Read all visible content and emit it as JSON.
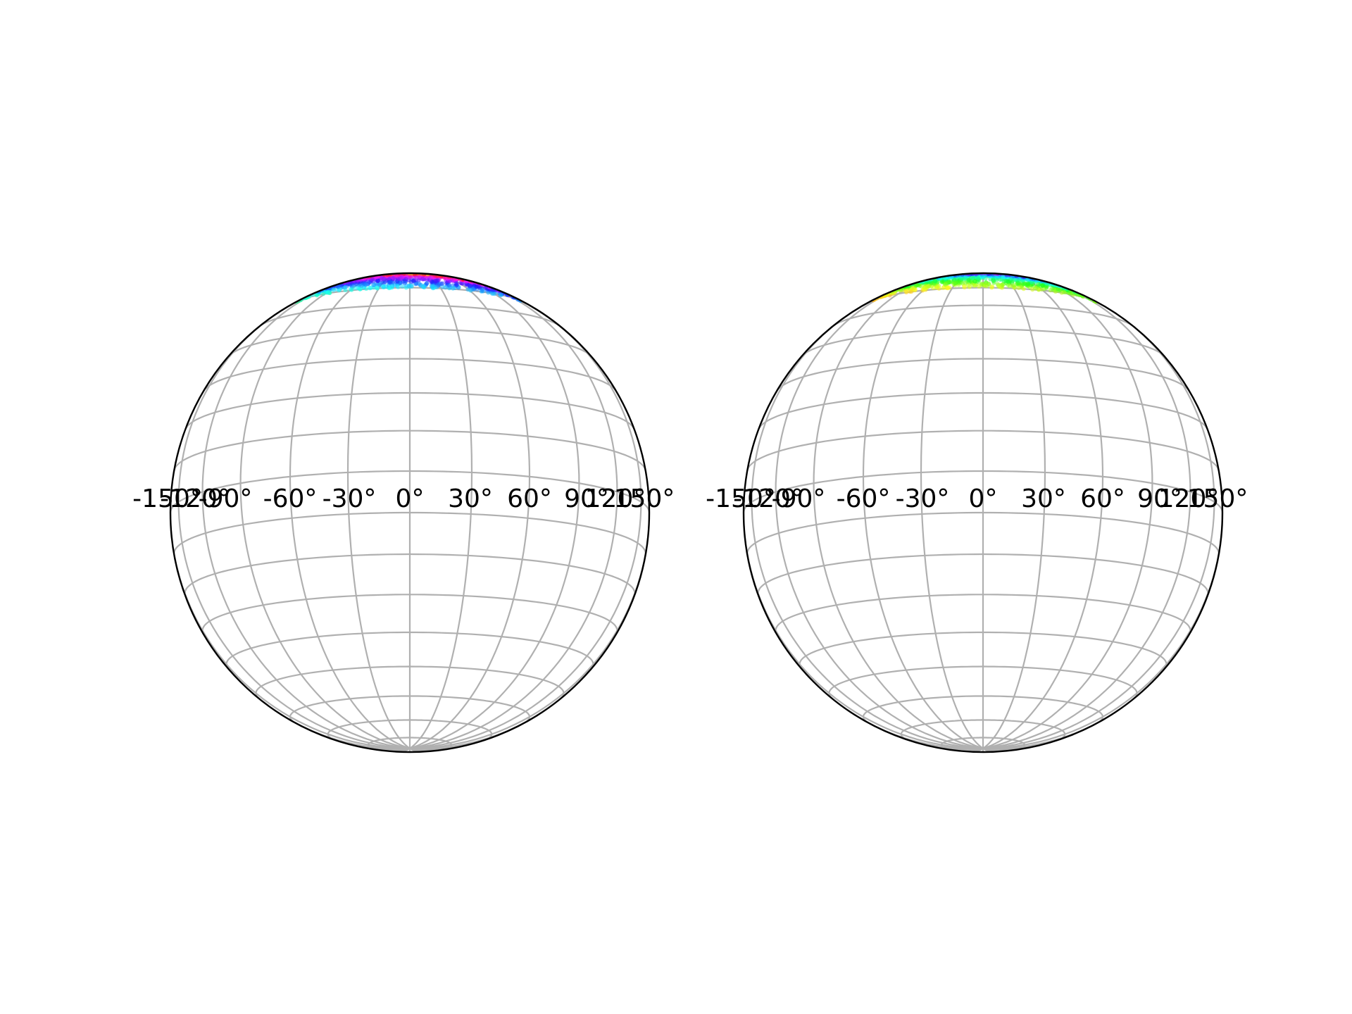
{
  "chart_data": [
    {
      "type": "scatter",
      "projection": "orthographic",
      "view_center": {
        "lon": 0,
        "lat": 0
      },
      "graticule": {
        "lon_step_deg": 15,
        "lat_step_deg": 10,
        "line_color": "#b0b0b0"
      },
      "outline_color": "#000000",
      "xtick_labels": [
        "-150°",
        "-120°",
        "-90°",
        "-60°",
        "-30°",
        "0°",
        "30°",
        "60°",
        "90°",
        "120°",
        "150°"
      ],
      "point_cloud": {
        "description": "dense colored points near the north pole, hue varies across the patch",
        "lat_range": [
          60,
          82
        ],
        "lon_range": [
          -90,
          90
        ],
        "colormap": "hsv",
        "hue_angle_offset_deg": 180
      }
    },
    {
      "type": "scatter",
      "projection": "orthographic",
      "view_center": {
        "lon": 0,
        "lat": 0
      },
      "graticule": {
        "lon_step_deg": 15,
        "lat_step_deg": 10,
        "line_color": "#b0b0b0"
      },
      "outline_color": "#000000",
      "xtick_labels": [
        "-150°",
        "-120°",
        "-90°",
        "-60°",
        "-30°",
        "0°",
        "30°",
        "60°",
        "90°",
        "120°",
        "150°"
      ],
      "point_cloud": {
        "description": "dense colored points near the north pole, hue varies across the patch",
        "lat_range": [
          60,
          82
        ],
        "lon_range": [
          -90,
          90
        ],
        "colormap": "hsv",
        "hue_angle_offset_deg": 60
      }
    }
  ]
}
